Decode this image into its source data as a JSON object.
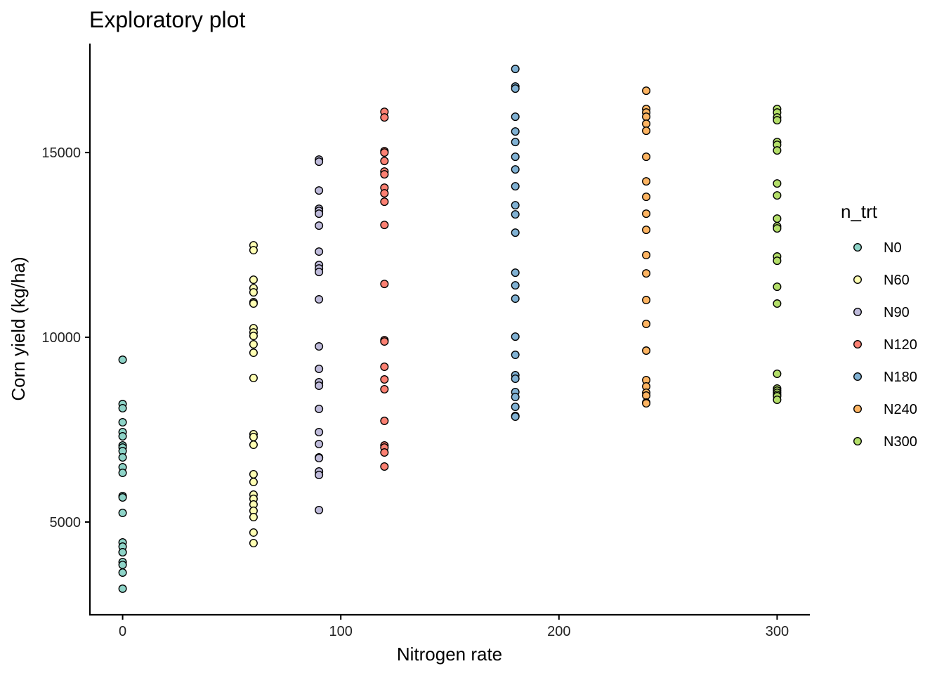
{
  "chart_data": {
    "type": "scatter",
    "title": "Exploratory plot",
    "xlabel": "Nitrogen rate",
    "ylabel": "Corn yield (kg/ha)",
    "xlim": [
      -15,
      315
    ],
    "ylim": [
      2490,
      17950
    ],
    "xticks": [
      0,
      100,
      200,
      300
    ],
    "xtick_labels": [
      "0",
      "100",
      "200",
      "300"
    ],
    "yticks": [
      5000,
      10000,
      15000
    ],
    "ytick_labels": [
      "5000",
      "10000",
      "15000"
    ],
    "grid": false,
    "legend": {
      "title": "n_trt",
      "placement": "right"
    },
    "series": [
      {
        "name": "N0",
        "color": "#8dd3c7",
        "x": 0,
        "values": [
          9392,
          8194,
          8080,
          7700,
          7434,
          7320,
          7073,
          7016,
          6921,
          6750,
          6484,
          6331,
          5704,
          5666,
          5248,
          4449,
          4335,
          4183,
          4183,
          3917,
          3841,
          3632,
          3195
        ]
      },
      {
        "name": "N60",
        "color": "#ffffb3",
        "x": 60,
        "values": [
          12491,
          12358,
          11559,
          11331,
          11217,
          10951,
          10913,
          10247,
          10133,
          10038,
          9810,
          9582,
          8898,
          7377,
          7301,
          7092,
          6293,
          6084,
          5742,
          5628,
          5476,
          5305,
          5134,
          4716,
          4430
        ]
      },
      {
        "name": "N90",
        "color": "#bebada",
        "x": 90,
        "values": [
          14810,
          14753,
          13973,
          13479,
          13422,
          13346,
          13023,
          12320,
          11958,
          11863,
          11768,
          11027,
          9753,
          9145,
          8784,
          8689,
          8061,
          7434,
          7111,
          6750,
          6731,
          6369,
          6274,
          5324
        ]
      },
      {
        "name": "N120",
        "color": "#fb8072",
        "x": 120,
        "values": [
          16103,
          15951,
          15038,
          15000,
          14772,
          14487,
          14411,
          14049,
          13897,
          13669,
          13042,
          11445,
          9924,
          9886,
          9202,
          8860,
          8594,
          7738,
          7073,
          7016,
          6883,
          6503
        ]
      },
      {
        "name": "N180",
        "color": "#80b1d3",
        "x": 180,
        "values": [
          17262,
          16787,
          16730,
          15970,
          15570,
          15285,
          14886,
          14544,
          14088,
          13574,
          13327,
          12833,
          11749,
          11407,
          11046,
          10019,
          9525,
          8974,
          8879,
          8518,
          8385,
          8118,
          7871,
          7852
        ]
      },
      {
        "name": "N240",
        "color": "#fdb462",
        "x": 240,
        "values": [
          16673,
          16179,
          16084,
          15970,
          15779,
          15589,
          14886,
          14221,
          13802,
          13346,
          12909,
          12225,
          11730,
          11008,
          10362,
          9639,
          8841,
          8670,
          8499,
          8423,
          8232,
          8213
        ]
      },
      {
        "name": "N300",
        "color": "#b3de69",
        "x": 300,
        "values": [
          16179,
          16084,
          15951,
          15874,
          15285,
          15209,
          15057,
          14164,
          13840,
          13213,
          13004,
          12947,
          12187,
          12072,
          11369,
          10913,
          9012,
          8613,
          8556,
          8499,
          8442,
          8404,
          8309
        ]
      }
    ]
  }
}
